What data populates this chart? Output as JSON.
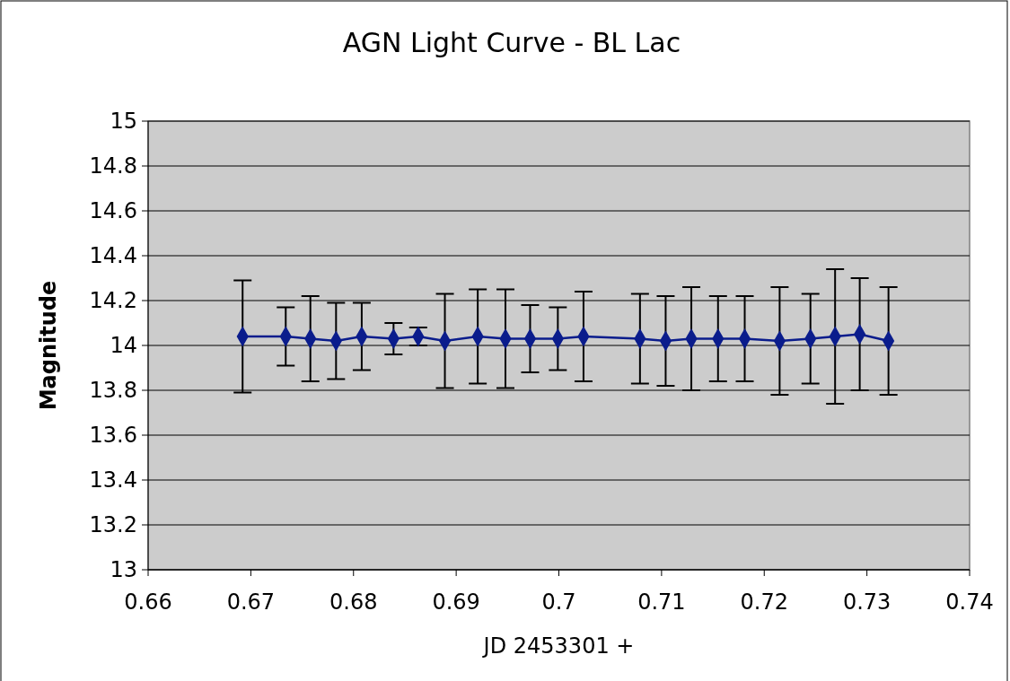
{
  "chart_data": {
    "type": "line",
    "title": "AGN  Light  Curve  -    BL  Lac",
    "xlabel": "JD  2453301  +",
    "ylabel": "Magnitude",
    "x": [
      0.6692,
      0.6734,
      0.6758,
      0.6783,
      0.6808,
      0.6839,
      0.6863,
      0.6889,
      0.6921,
      0.6948,
      0.6972,
      0.6999,
      0.7024,
      0.7079,
      0.7104,
      0.7129,
      0.7155,
      0.7181,
      0.7215,
      0.7245,
      0.7269,
      0.7293,
      0.7321
    ],
    "series": [
      {
        "color": "#0a1c8c",
        "values": [
          14.04,
          14.04,
          14.03,
          14.02,
          14.04,
          14.03,
          14.04,
          14.02,
          14.04,
          14.03,
          14.03,
          14.03,
          14.04,
          14.03,
          14.02,
          14.03,
          14.03,
          14.03,
          14.02,
          14.03,
          14.04,
          14.05,
          14.02
        ],
        "errors": [
          0.25,
          0.13,
          0.19,
          0.17,
          0.15,
          0.07,
          0.04,
          0.21,
          0.21,
          0.22,
          0.15,
          0.14,
          0.2,
          0.2,
          0.2,
          0.23,
          0.19,
          0.19,
          0.24,
          0.2,
          0.3,
          0.25,
          0.24
        ]
      }
    ],
    "xlim": [
      0.66,
      0.74
    ],
    "xticks": [
      0.66,
      0.67,
      0.68,
      0.69,
      0.7,
      0.71,
      0.72,
      0.73,
      0.74
    ],
    "ylim": [
      13,
      15
    ],
    "yticks": [
      13,
      13.2,
      13.4,
      13.6,
      13.8,
      14,
      14.2,
      14.4,
      14.6,
      14.8,
      15
    ],
    "grid": "y",
    "marker": "diamond",
    "line_style": "solid"
  }
}
